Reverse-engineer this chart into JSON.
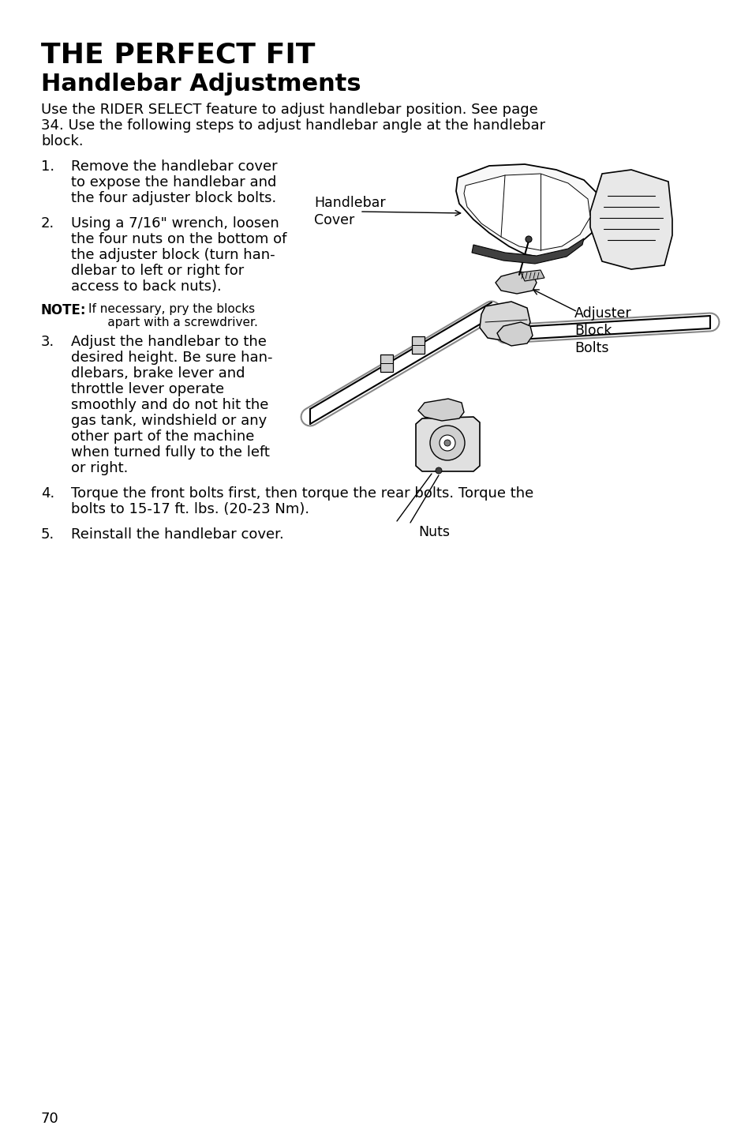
{
  "bg_color": "#ffffff",
  "title_line1": "THE PERFECT FIT",
  "title_line2": "Handlebar Adjustments",
  "intro_text": "Use the RIDER SELECT feature to adjust handlebar position. See page 34. Use the following steps to adjust handlebar angle at the handlebar block.",
  "step1": "Remove the handlebar cover to expose the handlebar and the four adjuster block bolts.",
  "step2": "Using a 7/16\" wrench, loosen the four nuts on the bottom of the adjuster block (turn han-\ndlebar to left or right for\naccess to back nuts).",
  "step3": "Adjust the handlebar to the desired height. Be sure han-\ndlebars, brake lever and\nthrottle lever operate\nsmoothly and do not hit the\ngas tank, windshield or any\nother part of the machine\nwhen turned fully to the left\nor right.",
  "step4": "Torque the front bolts first, then torque the rear bolts. Torque the bolts to 15-17 ft. lbs. (20-23 Nm).",
  "step5": "Reinstall the handlebar cover.",
  "note_bold": "NOTE:",
  "note_text": "If necessary, pry the blocks\n       apart with a screwdriver.",
  "label_hb_cover": "Handlebar\nCover",
  "label_adj_bolts": "Adjuster\nBlock\nBolts",
  "label_nuts": "Nuts",
  "page_number": "70",
  "text_color": "#000000"
}
